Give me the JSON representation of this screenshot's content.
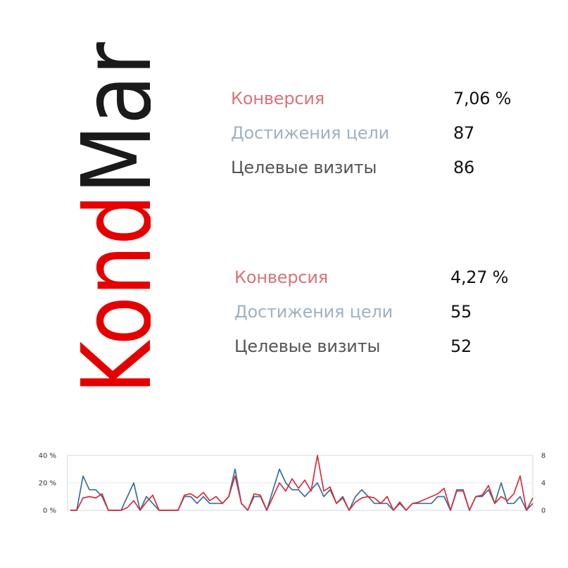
{
  "logo": {
    "text_first": "Kond",
    "text_second": "Mar",
    "color_first": "#e50000",
    "color_second": "#1a1a1a"
  },
  "colors": {
    "conversion_label": "#d9737b",
    "goals_label": "#9fb2c4",
    "visits_label": "#555555",
    "conversion_line": "#d62f3f",
    "visits_line": "#3a6f98"
  },
  "stats": [
    {
      "rows": [
        {
          "label": "Конверсия",
          "value": "7,06 %"
        },
        {
          "label": "Достижения цели",
          "value": "87"
        },
        {
          "label": "Целевые визиты",
          "value": "86"
        }
      ]
    },
    {
      "rows": [
        {
          "label": "Конверсия",
          "value": "4,27 %"
        },
        {
          "label": "Достижения цели",
          "value": "55"
        },
        {
          "label": "Целевые визиты",
          "value": "52"
        }
      ]
    }
  ],
  "chart_data": {
    "type": "line",
    "y_left": {
      "ticks": [
        "0 %",
        "20 %",
        "40 %"
      ],
      "range": [
        0,
        40
      ]
    },
    "y_right": {
      "ticks": [
        "0",
        "4",
        "8"
      ],
      "range": [
        0,
        8
      ]
    },
    "grid": true,
    "series": [
      {
        "axis": "left",
        "values": [
          0,
          0,
          9,
          10,
          9,
          12,
          0,
          0,
          0,
          2,
          7,
          0,
          6,
          11,
          0,
          0,
          0,
          0,
          11,
          12,
          9,
          13,
          7,
          10,
          5,
          10,
          25,
          5,
          0,
          12,
          11,
          0,
          10,
          20,
          14,
          23,
          16,
          22,
          14,
          40,
          14,
          17,
          5,
          9,
          0,
          6,
          9,
          10,
          9,
          5,
          10,
          0,
          6,
          0,
          5,
          6,
          8,
          10,
          12,
          16,
          0,
          14,
          14,
          0,
          10,
          11,
          18,
          5,
          10,
          7,
          12,
          25,
          0,
          9
        ]
      },
      {
        "axis": "right",
        "values": [
          0,
          0,
          5,
          3,
          3,
          2,
          0,
          0,
          0,
          2,
          4,
          0,
          2,
          1,
          0,
          0,
          0,
          0,
          2,
          2,
          1,
          2,
          1,
          1,
          1,
          2,
          6,
          1,
          0,
          2,
          2,
          0,
          3,
          6,
          4,
          3,
          3,
          2,
          3,
          4,
          2,
          3,
          1,
          2,
          0,
          2,
          3,
          2,
          1,
          1,
          1,
          0,
          1,
          0,
          1,
          1,
          1,
          1,
          2,
          2,
          0,
          3,
          3,
          0,
          2,
          2,
          3,
          1,
          4,
          1,
          1,
          2,
          0,
          1
        ]
      }
    ]
  }
}
